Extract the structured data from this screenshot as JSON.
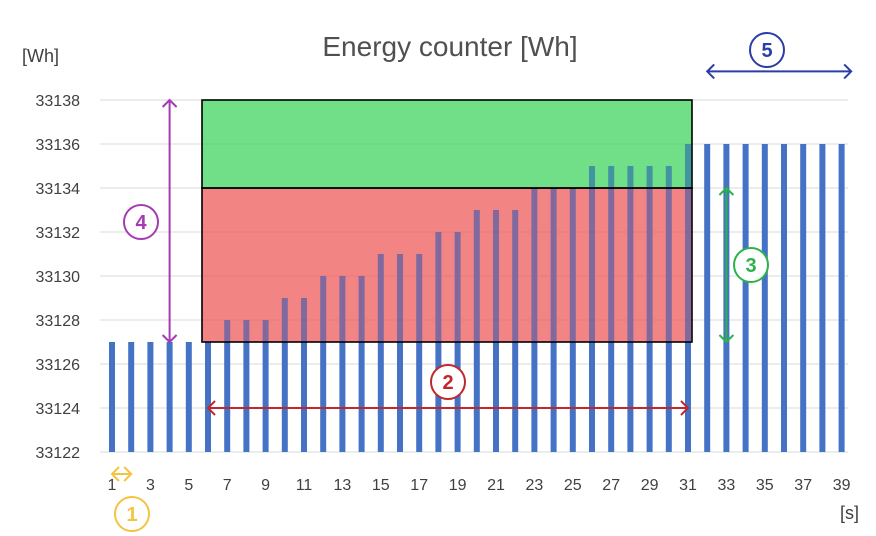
{
  "chart_data": {
    "type": "bar",
    "title": "Energy counter [Wh]",
    "ylabel": "[Wh]",
    "xlabel": "[s]",
    "ylim": [
      33122,
      33138
    ],
    "yticks": [
      33122,
      33124,
      33126,
      33128,
      33130,
      33132,
      33134,
      33136,
      33138
    ],
    "x": [
      1,
      2,
      3,
      4,
      5,
      6,
      7,
      8,
      9,
      10,
      11,
      12,
      13,
      14,
      15,
      16,
      17,
      18,
      19,
      20,
      21,
      22,
      23,
      24,
      25,
      26,
      27,
      28,
      29,
      30,
      31,
      32,
      33,
      34,
      35,
      36,
      37,
      38,
      39
    ],
    "xtick_labels": [
      "1",
      "3",
      "5",
      "7",
      "9",
      "11",
      "13",
      "15",
      "17",
      "19",
      "21",
      "23",
      "25",
      "27",
      "29",
      "31",
      "33",
      "35",
      "37",
      "39"
    ],
    "values": [
      33127,
      33127,
      33127,
      33127,
      33127,
      33127,
      33128,
      33128,
      33128,
      33129,
      33129,
      33130,
      33130,
      33130,
      33131,
      33131,
      33131,
      33132,
      33132,
      33133,
      33133,
      33133,
      33134,
      33134,
      33134,
      33135,
      33135,
      33135,
      33135,
      33135,
      33136,
      33136,
      33136,
      33136,
      33136,
      33136,
      33136,
      33136,
      33136
    ],
    "grid": true,
    "colors": {
      "bar": "#4472c4",
      "red_zone": "#ef5a5a",
      "green_zone": "#3ed45e",
      "marker_1": "#f5c342",
      "marker_2": "#c0262c",
      "marker_3": "#2db34a",
      "marker_4": "#a63ab4",
      "marker_5": "#2a3ea8"
    },
    "regions": [
      {
        "name": "red",
        "x_from": 6,
        "x_to": 31,
        "y_from": 33127,
        "y_to": 33134
      },
      {
        "name": "green",
        "x_from": 6,
        "x_to": 31,
        "y_from": 33134,
        "y_to": 33138
      }
    ],
    "annotations": [
      {
        "label": "1",
        "type": "horizontal",
        "from": 1,
        "to": 2,
        "at": 33121
      },
      {
        "label": "2",
        "type": "horizontal",
        "from": 6,
        "to": 31,
        "at": 33124
      },
      {
        "label": "3",
        "type": "vertical",
        "at": 33,
        "from": 33127,
        "to": 33134
      },
      {
        "label": "4",
        "type": "vertical",
        "at": 4,
        "from": 33127,
        "to": 33138
      },
      {
        "label": "5",
        "type": "horizontal",
        "from": 32,
        "to": 39.5,
        "at": 33139.3
      }
    ]
  }
}
